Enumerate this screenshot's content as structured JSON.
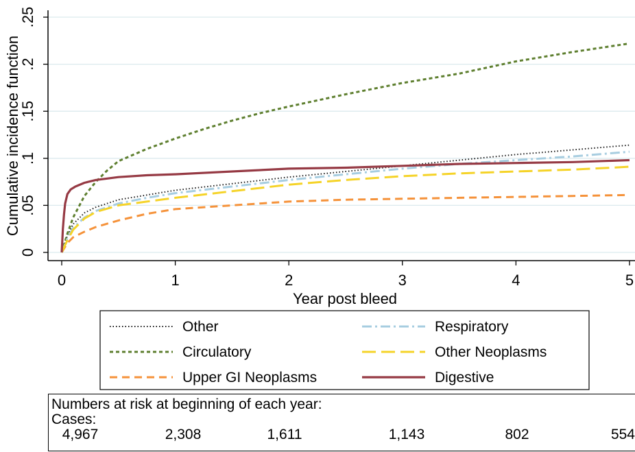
{
  "chart_data": {
    "type": "line",
    "xlabel": "Year post bleed",
    "ylabel": "Cumulative incidence function",
    "xlim": [
      0,
      5
    ],
    "ylim": [
      0,
      0.25
    ],
    "x_ticks": [
      0,
      1,
      2,
      3,
      4,
      5
    ],
    "x_tick_labels": [
      "0",
      "1",
      "2",
      "3",
      "4",
      "5"
    ],
    "y_ticks": [
      0,
      0.05,
      0.1,
      0.15,
      0.2,
      0.25
    ],
    "y_tick_labels": [
      "0",
      ".05",
      ".1",
      ".15",
      ".2",
      ".25"
    ],
    "grid": true,
    "legend_position": "bottom",
    "series": [
      {
        "name": "Other",
        "color": "#1a1a1a",
        "style": "dotted",
        "points": [
          [
            0,
            0
          ],
          [
            0.05,
            0.018
          ],
          [
            0.1,
            0.03
          ],
          [
            0.2,
            0.042
          ],
          [
            0.3,
            0.048
          ],
          [
            0.5,
            0.056
          ],
          [
            0.75,
            0.061
          ],
          [
            1,
            0.066
          ],
          [
            1.5,
            0.073
          ],
          [
            2,
            0.08
          ],
          [
            2.5,
            0.086
          ],
          [
            3,
            0.092
          ],
          [
            3.5,
            0.098
          ],
          [
            4,
            0.104
          ],
          [
            4.5,
            0.109
          ],
          [
            5,
            0.114
          ]
        ]
      },
      {
        "name": "Circulatory",
        "color": "#5e7f2f",
        "style": "short-dash",
        "points": [
          [
            0,
            0
          ],
          [
            0.05,
            0.02
          ],
          [
            0.1,
            0.037
          ],
          [
            0.2,
            0.06
          ],
          [
            0.3,
            0.075
          ],
          [
            0.4,
            0.087
          ],
          [
            0.5,
            0.097
          ],
          [
            0.75,
            0.11
          ],
          [
            1,
            0.121
          ],
          [
            1.25,
            0.131
          ],
          [
            1.5,
            0.14
          ],
          [
            1.75,
            0.148
          ],
          [
            2,
            0.155
          ],
          [
            2.5,
            0.168
          ],
          [
            3,
            0.18
          ],
          [
            3.5,
            0.19
          ],
          [
            4,
            0.203
          ],
          [
            4.5,
            0.213
          ],
          [
            5,
            0.222
          ]
        ]
      },
      {
        "name": "Upper GI Neoplasms",
        "color": "#f5923a",
        "style": "dash",
        "points": [
          [
            0,
            0
          ],
          [
            0.05,
            0.01
          ],
          [
            0.1,
            0.016
          ],
          [
            0.2,
            0.022
          ],
          [
            0.3,
            0.027
          ],
          [
            0.5,
            0.034
          ],
          [
            0.75,
            0.041
          ],
          [
            1,
            0.046
          ],
          [
            1.5,
            0.05
          ],
          [
            2,
            0.054
          ],
          [
            2.5,
            0.056
          ],
          [
            3,
            0.057
          ],
          [
            3.5,
            0.058
          ],
          [
            4,
            0.059
          ],
          [
            4.5,
            0.06
          ],
          [
            5,
            0.061
          ]
        ]
      },
      {
        "name": "Respiratory",
        "color": "#a7cde0",
        "style": "dash-dot",
        "points": [
          [
            0,
            0
          ],
          [
            0.05,
            0.015
          ],
          [
            0.1,
            0.026
          ],
          [
            0.2,
            0.037
          ],
          [
            0.3,
            0.044
          ],
          [
            0.5,
            0.052
          ],
          [
            0.75,
            0.058
          ],
          [
            1,
            0.063
          ],
          [
            1.5,
            0.07
          ],
          [
            2,
            0.077
          ],
          [
            2.5,
            0.083
          ],
          [
            3,
            0.089
          ],
          [
            3.5,
            0.094
          ],
          [
            4,
            0.098
          ],
          [
            4.5,
            0.102
          ],
          [
            5,
            0.107
          ]
        ]
      },
      {
        "name": "Other Neoplasms",
        "color": "#f5d328",
        "style": "long-dash",
        "points": [
          [
            0,
            0
          ],
          [
            0.05,
            0.013
          ],
          [
            0.1,
            0.024
          ],
          [
            0.2,
            0.036
          ],
          [
            0.3,
            0.043
          ],
          [
            0.5,
            0.05
          ],
          [
            0.75,
            0.054
          ],
          [
            1,
            0.058
          ],
          [
            1.5,
            0.065
          ],
          [
            2,
            0.072
          ],
          [
            2.5,
            0.077
          ],
          [
            3,
            0.081
          ],
          [
            3.5,
            0.084
          ],
          [
            4,
            0.086
          ],
          [
            4.5,
            0.088
          ],
          [
            5,
            0.091
          ]
        ]
      },
      {
        "name": "Digestive",
        "color": "#963a44",
        "style": "solid",
        "points": [
          [
            0,
            0
          ],
          [
            0.01,
            0.025
          ],
          [
            0.02,
            0.04
          ],
          [
            0.03,
            0.052
          ],
          [
            0.05,
            0.062
          ],
          [
            0.08,
            0.067
          ],
          [
            0.12,
            0.07
          ],
          [
            0.2,
            0.074
          ],
          [
            0.3,
            0.077
          ],
          [
            0.5,
            0.08
          ],
          [
            0.75,
            0.082
          ],
          [
            1,
            0.083
          ],
          [
            1.5,
            0.086
          ],
          [
            2,
            0.089
          ],
          [
            2.5,
            0.09
          ],
          [
            3,
            0.092
          ],
          [
            3.5,
            0.094
          ],
          [
            4,
            0.095
          ],
          [
            4.5,
            0.096
          ],
          [
            5,
            0.098
          ]
        ]
      }
    ],
    "legend": [
      {
        "label": "Other",
        "series": 0
      },
      {
        "label": "Respiratory",
        "series": 3
      },
      {
        "label": "Circulatory",
        "series": 1
      },
      {
        "label": "Other Neoplasms",
        "series": 4
      },
      {
        "label": "Upper GI Neoplasms",
        "series": 2
      },
      {
        "label": "Digestive",
        "series": 5
      }
    ]
  },
  "risk_table": {
    "title": "Numbers at risk at beginning of each year:",
    "group_label": "Cases:",
    "values": [
      "4,967",
      "2,308",
      "1,611",
      "1,143",
      "802",
      "554"
    ]
  }
}
